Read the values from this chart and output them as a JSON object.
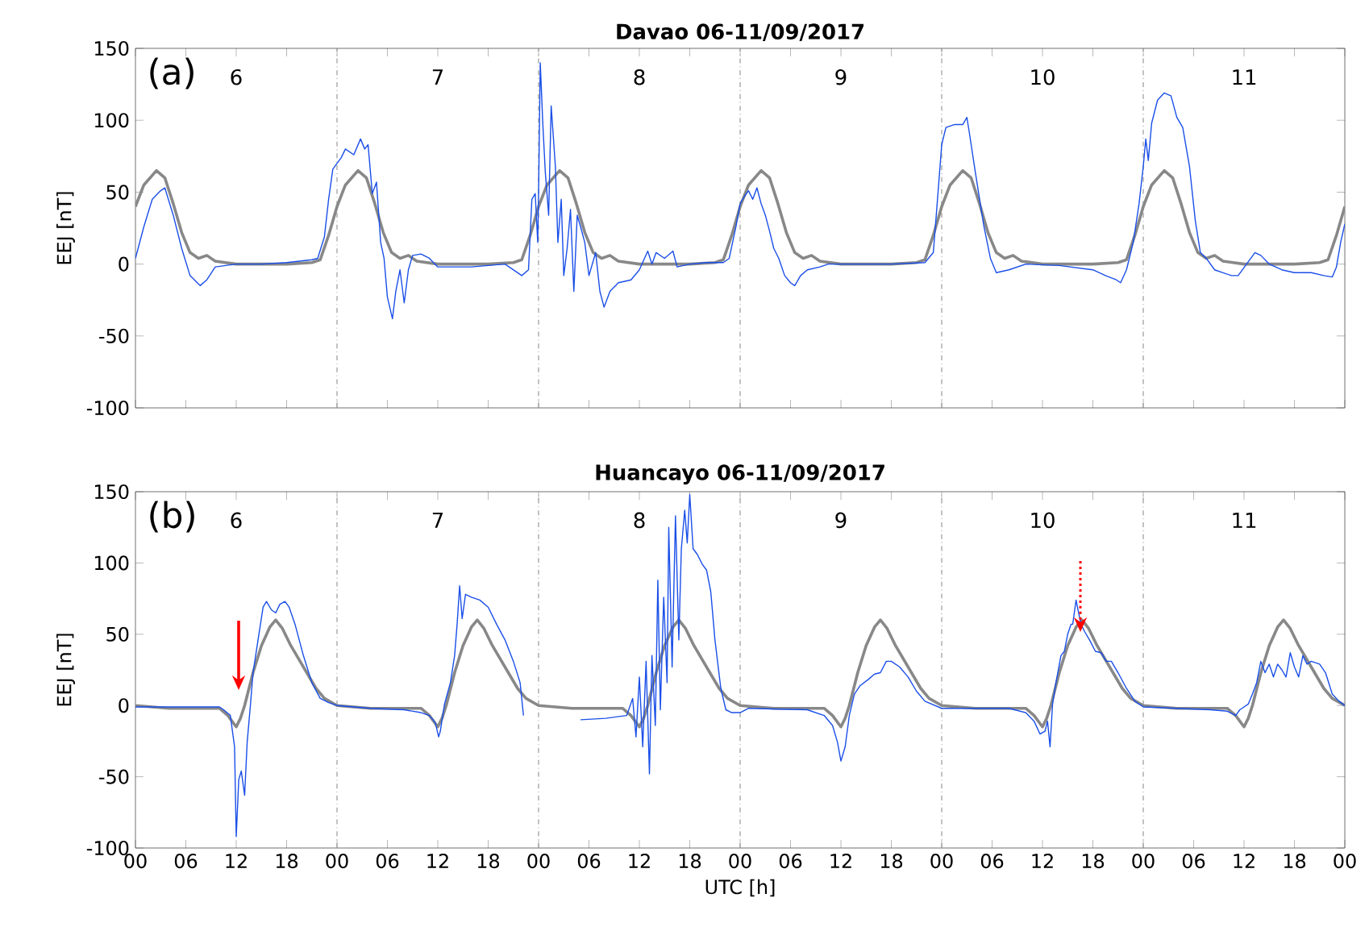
{
  "chart_data": [
    {
      "type": "line",
      "title": "Davao   06-11/09/2017",
      "ylabel": "EEJ [nT]",
      "xlim": [
        0,
        144
      ],
      "ylim": [
        -100,
        150
      ],
      "yticks": [
        -100,
        -50,
        0,
        50,
        100,
        150
      ],
      "tick_labels": "y",
      "xticks": [
        {
          "value": 0,
          "label": null
        },
        {
          "value": 6,
          "label": null
        },
        {
          "value": 12,
          "label": null
        },
        {
          "value": 18,
          "label": null
        },
        {
          "value": 24,
          "label": null
        },
        {
          "value": 30,
          "label": null
        },
        {
          "value": 36,
          "label": null
        },
        {
          "value": 42,
          "label": null
        },
        {
          "value": 48,
          "label": null
        },
        {
          "value": 54,
          "label": null
        },
        {
          "value": 60,
          "label": null
        },
        {
          "value": 66,
          "label": null
        },
        {
          "value": 72,
          "label": null
        },
        {
          "value": 78,
          "label": null
        },
        {
          "value": 84,
          "label": null
        },
        {
          "value": 90,
          "label": null
        },
        {
          "value": 96,
          "label": null
        },
        {
          "value": 102,
          "label": null
        },
        {
          "value": 108,
          "label": null
        },
        {
          "value": 114,
          "label": null
        },
        {
          "value": 120,
          "label": null
        },
        {
          "value": 126,
          "label": null
        },
        {
          "value": 132,
          "label": null
        },
        {
          "value": 138,
          "label": null
        },
        {
          "value": 144,
          "label": null
        }
      ],
      "ref_lines": [
        {
          "axis": "x",
          "value": 24,
          "color": "#999999",
          "line_style": "dashdot"
        },
        {
          "axis": "x",
          "value": 48,
          "color": "#999999",
          "line_style": "dashdot"
        },
        {
          "axis": "x",
          "value": 72,
          "color": "#999999",
          "line_style": "dashdot"
        },
        {
          "axis": "x",
          "value": 96,
          "color": "#999999",
          "line_style": "dashdot"
        },
        {
          "axis": "x",
          "value": 120,
          "color": "#999999",
          "line_style": "dashdot"
        }
      ],
      "annotations": [
        "(a)",
        "6",
        "7",
        "8",
        "9",
        "10",
        "11"
      ],
      "series": [
        {
          "color": "#888888",
          "x": [
            0,
            1,
            2.5,
            3.5,
            4.5,
            5.5,
            6.5,
            7.5,
            8.5,
            9.5,
            12,
            18,
            21,
            22,
            23,
            24,
            25,
            26.5,
            27.5,
            28.5,
            29.5,
            30.5,
            31.5,
            32.5,
            33.5,
            36,
            42,
            45,
            46,
            47,
            48,
            49,
            50.5,
            51.5,
            52.5,
            53.5,
            54.5,
            55.5,
            56.5,
            57.5,
            60,
            66,
            69,
            70,
            71,
            72,
            73,
            74.5,
            75.5,
            76.5,
            77.5,
            78.5,
            79.5,
            80.5,
            81.5,
            84,
            90,
            93,
            94,
            95,
            96,
            97,
            98.5,
            99.5,
            100.5,
            101.5,
            102.5,
            103.5,
            104.5,
            105.5,
            108,
            114,
            117,
            118,
            119,
            120,
            121,
            122.5,
            123.5,
            124.5,
            125.5,
            126.5,
            127.5,
            128.5,
            129.5,
            132,
            138,
            141,
            142,
            143,
            144
          ],
          "values": [
            40,
            55,
            65,
            60,
            42,
            22,
            8,
            4,
            6,
            2,
            0,
            0,
            1,
            3,
            20,
            40,
            55,
            65,
            60,
            42,
            22,
            8,
            4,
            6,
            2,
            0,
            0,
            1,
            3,
            20,
            40,
            55,
            65,
            60,
            42,
            22,
            8,
            4,
            6,
            2,
            0,
            0,
            1,
            3,
            20,
            40,
            55,
            65,
            60,
            42,
            22,
            8,
            4,
            6,
            2,
            0,
            0,
            1,
            3,
            20,
            40,
            55,
            65,
            60,
            42,
            22,
            8,
            4,
            6,
            2,
            0,
            0,
            1,
            3,
            20,
            40,
            55,
            65,
            60,
            42,
            22,
            8,
            4,
            6,
            2,
            0,
            0,
            1,
            3,
            20,
            40
          ]
        },
        {
          "color": "#1a4fe8",
          "x": [
            0,
            1,
            2,
            3,
            3.5,
            4.5,
            5.5,
            6.5,
            7.7,
            8.5,
            9.5,
            12,
            15,
            18,
            21,
            21.7,
            22.5,
            23,
            23.5,
            24,
            24.5,
            25,
            26,
            26.8,
            27.3,
            27.7,
            28.2,
            28.7,
            29.2,
            29.6,
            30,
            30.6,
            31,
            31.5,
            32,
            32.5,
            33,
            34,
            35,
            36,
            40,
            44,
            45,
            46,
            46.8,
            47.2,
            47.6,
            47.9,
            48,
            48.2,
            48.5,
            48.8,
            49.2,
            49.5,
            50,
            50.3,
            50.7,
            51,
            51.4,
            51.8,
            52.2,
            52.6,
            53,
            53.5,
            54,
            54.8,
            55.3,
            55.8,
            56.5,
            57.5,
            59,
            60,
            61,
            61.5,
            62,
            63,
            64,
            64.5,
            66,
            68,
            70,
            70.7,
            71.5,
            72,
            72.5,
            73,
            73.5,
            74,
            74.5,
            75,
            75.5,
            76,
            76.6,
            77.3,
            78,
            78.5,
            79.2,
            80,
            81.5,
            82.5,
            90,
            94,
            95,
            95.5,
            96,
            96.5,
            97.5,
            98.5,
            99,
            99.3,
            100,
            101,
            101.8,
            102.5,
            104,
            106,
            110,
            114,
            115.5,
            116.8,
            117.3,
            118,
            118.8,
            119.5,
            120,
            120.3,
            120.6,
            121,
            121.7,
            122.5,
            123.3,
            124,
            124.7,
            125.5,
            126.2,
            126.8,
            127.5,
            128.5,
            129.5,
            130.5,
            131.3,
            132.3,
            133.3,
            134,
            135,
            136.5,
            138,
            140,
            141.5,
            142.5,
            143,
            143.5,
            144
          ],
          "values": [
            4,
            26,
            45,
            51,
            53,
            34,
            11,
            -8,
            -15,
            -11,
            -2,
            0,
            0,
            1,
            3,
            4,
            19,
            45,
            66,
            70,
            74,
            80,
            76,
            87,
            80,
            83,
            49,
            57,
            15,
            4,
            -23,
            -38,
            -19,
            -4,
            -27,
            -4,
            6,
            7,
            4,
            -2,
            -2,
            0,
            -4,
            -8,
            -4,
            45,
            49,
            15,
            49,
            140,
            98,
            64,
            34,
            110,
            68,
            15,
            45,
            -8,
            11,
            38,
            -19,
            34,
            26,
            15,
            -8,
            8,
            -19,
            -30,
            -19,
            -13,
            -11,
            -4,
            9,
            0,
            8,
            4,
            9,
            -2,
            0,
            1,
            1,
            4,
            26,
            42,
            47,
            51,
            45,
            53,
            42,
            34,
            23,
            11,
            4,
            -8,
            -13,
            -15,
            -8,
            -4,
            -2,
            0,
            0,
            1,
            8,
            45,
            83,
            95,
            97,
            97,
            102,
            91,
            64,
            27,
            4,
            -6,
            -4,
            0,
            -1,
            -4,
            -8,
            -11,
            -13,
            -4,
            15,
            42,
            68,
            87,
            72,
            98,
            114,
            119,
            117,
            102,
            95,
            68,
            30,
            8,
            4,
            -4,
            -6,
            -8,
            -8,
            0,
            8,
            6,
            0,
            -4,
            -6,
            -6,
            -8,
            -9,
            -2,
            15,
            28
          ]
        }
      ]
    },
    {
      "type": "line",
      "title": "Huancayo   06-11/09/2017",
      "ylabel": "EEJ [nT]",
      "xlabel": "UTC [h]",
      "xlim": [
        0,
        144
      ],
      "ylim": [
        -100,
        150
      ],
      "yticks": [
        -100,
        -50,
        0,
        50,
        100,
        150
      ],
      "xticks": [
        {
          "value": 0,
          "label": "00"
        },
        {
          "value": 6,
          "label": "06"
        },
        {
          "value": 12,
          "label": "12"
        },
        18,
        {
          "value": 24,
          "label": "00"
        },
        {
          "value": 30,
          "label": "06"
        },
        {
          "value": 36,
          "label": "12"
        },
        {
          "value": 42,
          "label": "18"
        },
        {
          "value": 48,
          "label": "00"
        },
        {
          "value": 54,
          "label": "06"
        },
        {
          "value": 60,
          "label": "12"
        },
        {
          "value": 66,
          "label": "18"
        },
        {
          "value": 72,
          "label": "00"
        },
        {
          "value": 78,
          "label": "06"
        },
        {
          "value": 84,
          "label": "12"
        },
        {
          "value": 90,
          "label": "18"
        },
        {
          "value": 96,
          "label": "00"
        },
        {
          "value": 102,
          "label": "06"
        },
        {
          "value": 108,
          "label": "12"
        },
        {
          "value": 114,
          "label": "18"
        },
        {
          "value": 120,
          "label": "00"
        },
        {
          "value": 126,
          "label": "06"
        },
        {
          "value": 132,
          "label": "12"
        },
        {
          "value": 138,
          "label": "18"
        },
        {
          "value": 144,
          "label": "00"
        }
      ],
      "ref_lines": [
        {
          "axis": "x",
          "value": 24,
          "color": "#999999",
          "line_style": "dashdot"
        },
        {
          "axis": "x",
          "value": 48,
          "color": "#999999",
          "line_style": "dashdot"
        },
        {
          "axis": "x",
          "value": 72,
          "color": "#999999",
          "line_style": "dashdot"
        },
        {
          "axis": "x",
          "value": 96,
          "color": "#999999",
          "line_style": "dashdot"
        },
        {
          "axis": "x",
          "value": 120,
          "color": "#999999",
          "line_style": "dashdot"
        }
      ],
      "annotations": [
        "(b)",
        "6",
        "7",
        "8",
        "9",
        "10",
        "11"
      ],
      "series": [
        {
          "color": "#888888",
          "x": [
            0,
            4,
            10,
            11,
            12,
            12.5,
            13,
            14,
            15,
            16,
            16.7,
            17.5,
            18.5,
            20,
            21.5,
            22.5,
            24,
            28,
            34,
            35,
            36,
            36.5,
            37,
            38,
            39,
            40,
            40.7,
            41.5,
            42.5,
            44,
            45.5,
            46.5,
            48,
            52,
            58,
            59,
            60,
            60.5,
            61,
            62,
            63,
            64,
            64.7,
            65.5,
            66.5,
            68,
            69.5,
            70.5,
            72,
            76,
            82,
            83,
            84,
            84.5,
            85,
            86,
            87,
            88,
            88.7,
            89.5,
            90.5,
            92,
            93.5,
            94.5,
            96,
            100,
            106,
            107,
            108,
            108.5,
            109,
            110,
            111,
            112,
            112.7,
            113.5,
            114.5,
            116,
            117.5,
            118.5,
            120,
            124,
            130,
            131,
            132,
            132.5,
            133,
            134,
            135,
            136,
            136.7,
            137.5,
            138.5,
            140,
            141.5,
            142.5,
            144
          ],
          "values": [
            0,
            -2,
            -2,
            -7,
            -15,
            -9,
            0,
            23,
            42,
            55,
            60,
            54,
            42,
            27,
            12,
            5,
            0,
            -2,
            -2,
            -7,
            -15,
            -9,
            0,
            23,
            42,
            55,
            60,
            54,
            42,
            27,
            12,
            5,
            0,
            -2,
            -2,
            -7,
            -15,
            -9,
            0,
            23,
            42,
            55,
            60,
            54,
            42,
            27,
            12,
            5,
            0,
            -2,
            -2,
            -7,
            -15,
            -9,
            0,
            23,
            42,
            55,
            60,
            54,
            42,
            27,
            12,
            5,
            0,
            -2,
            -2,
            -7,
            -15,
            -9,
            0,
            23,
            42,
            55,
            60,
            54,
            42,
            27,
            12,
            5,
            0,
            -2,
            -2,
            -7,
            -15,
            -9,
            0,
            23,
            42,
            55,
            60,
            54,
            42,
            27,
            12,
            5,
            0
          ]
        },
        {
          "color": "#1a4fe8",
          "x": [
            0,
            5,
            10,
            10.5,
            11.3,
            11.8,
            12,
            12.3,
            12.6,
            13,
            13.3,
            13.7,
            14,
            14.7,
            15.2,
            15.6,
            16.2,
            16.7,
            17.2,
            17.8,
            18.3,
            19,
            20,
            21,
            22,
            23,
            24,
            28,
            32,
            34,
            35,
            35.7,
            36.1,
            36.3,
            36.8,
            37.5,
            38,
            38.3,
            38.6,
            38.9,
            39.3,
            40,
            41,
            42,
            43,
            44,
            45,
            45.8,
            46.2,
            50,
            53,
            56,
            58.5,
            59.2,
            59.6,
            60,
            60.4,
            60.8,
            61.2,
            61.5,
            61.9,
            62.2,
            62.5,
            62.9,
            63.3,
            63.5,
            63.9,
            64.3,
            64.7,
            65,
            65.4,
            65.7,
            66,
            66.4,
            66.9,
            67.5,
            68,
            68.5,
            69,
            69.7,
            70.3,
            71,
            72,
            73,
            80,
            82,
            83,
            83.6,
            84,
            84.5,
            85,
            85.6,
            86.3,
            87.2,
            88,
            88.7,
            89.4,
            90,
            91,
            92,
            93,
            94,
            96,
            104,
            106,
            107,
            107.7,
            108.3,
            108.6,
            108.9,
            109.2,
            109.6,
            110.2,
            110.6,
            111,
            111.4,
            111.6,
            112,
            112.3,
            112.6,
            113,
            113.6,
            114.3,
            115,
            115.6,
            116.2,
            117,
            118,
            119,
            120,
            128,
            130,
            131,
            131.5,
            132,
            132.5,
            133,
            133.5,
            134,
            134.5,
            135,
            135.5,
            136,
            136.5,
            137,
            137.5,
            138,
            138.5,
            139,
            139.5,
            140,
            141,
            141.7,
            142.5,
            143.3,
            144
          ],
          "values": [
            -1,
            -1,
            -1,
            -3,
            -7,
            -29,
            -92,
            -52,
            -46,
            -63,
            -26,
            1,
            23,
            50,
            69,
            73,
            67,
            65,
            71,
            73,
            69,
            57,
            35,
            16,
            5,
            2,
            0,
            -2,
            -3,
            -5,
            -7,
            -12,
            -22,
            -18,
            1,
            16,
            35,
            57,
            84,
            61,
            78,
            76,
            74,
            69,
            57,
            46,
            31,
            16,
            -7,
            null,
            -10,
            -9,
            -7,
            5,
            -22,
            20,
            -29,
            31,
            -48,
            35,
            -14,
            88,
            -3,
            76,
            16,
            125,
            27,
            133,
            46,
            110,
            137,
            114,
            148,
            110,
            106,
            99,
            95,
            80,
            46,
            12,
            -3,
            -5,
            -5,
            -2,
            -3,
            -7,
            -14,
            -26,
            -39,
            -29,
            -7,
            8,
            14,
            18,
            22,
            23,
            31,
            31,
            27,
            20,
            10,
            3,
            -2,
            -2,
            -5,
            -11,
            -20,
            -18,
            -11,
            -29,
            1,
            16,
            35,
            38,
            50,
            57,
            57,
            74,
            65,
            57,
            52,
            46,
            38,
            37,
            31,
            31,
            23,
            12,
            3,
            -1,
            -3,
            -4,
            -7,
            -3,
            -1,
            1,
            8,
            16,
            31,
            23,
            29,
            20,
            29,
            25,
            20,
            37,
            27,
            20,
            35,
            29,
            31,
            29,
            23,
            8,
            3,
            0
          ]
        }
      ]
    }
  ]
}
